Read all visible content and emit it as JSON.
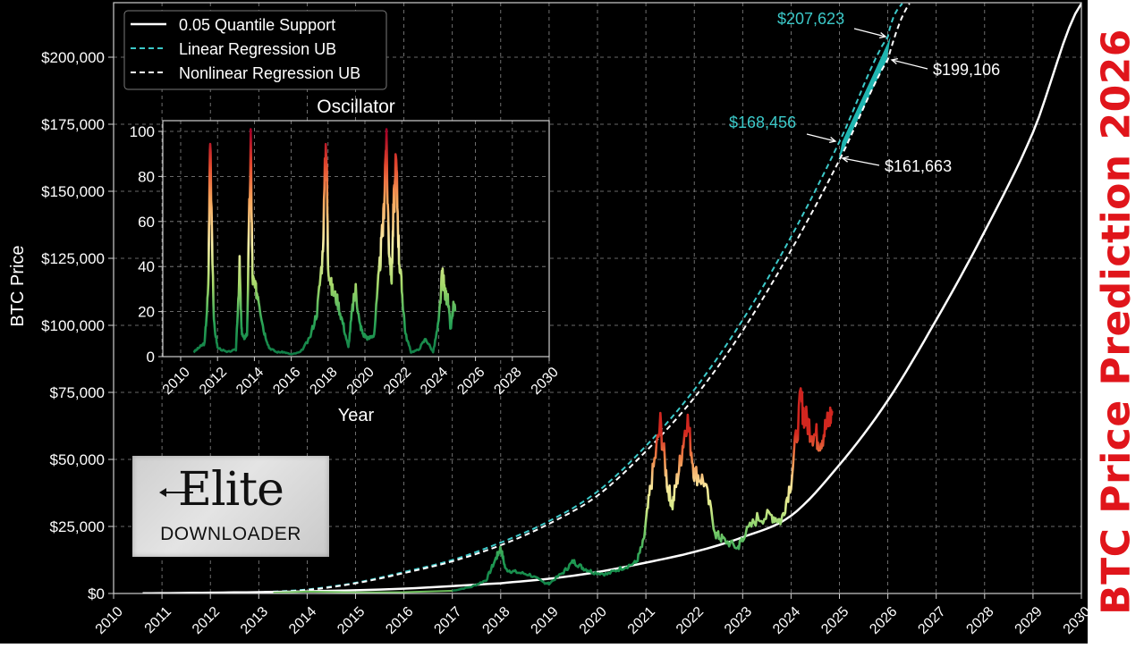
{
  "side_title": "BTC Price Prediction 2026",
  "logo": {
    "brand": "Elite",
    "sub": "DOWNLOADER"
  },
  "colors": {
    "background": "#000000",
    "support": "#ffffff",
    "linear_ub": "#3cc9c9",
    "nonlinear_ub": "#ffffff",
    "projection_band": "#1fb5b0",
    "title_red": "#e0151b",
    "grid": "#8a8a8a"
  },
  "chart_data": [
    {
      "type": "line",
      "title": "",
      "xlabel": "",
      "ylabel": "BTC Price",
      "xlim": [
        2010,
        2030
      ],
      "ylim": [
        0,
        220000
      ],
      "grid": true,
      "legend_position": "upper left",
      "x_ticks": [
        "2010",
        "2011",
        "2012",
        "2013",
        "2014",
        "2015",
        "2016",
        "2017",
        "2018",
        "2019",
        "2020",
        "2021",
        "2022",
        "2023",
        "2024",
        "2025",
        "2026",
        "2027",
        "2028",
        "2029",
        "2030"
      ],
      "y_ticks": [
        "$0",
        "$25,000",
        "$50,000",
        "$75,000",
        "$100,000",
        "$125,000",
        "$150,000",
        "$175,000",
        "$200,000"
      ],
      "legend": [
        "0.05 Quantile Support",
        "Linear Regression UB",
        "Nonlinear Regression UB"
      ],
      "series": [
        {
          "name": "0.05 Quantile Support",
          "style": "solid",
          "color": "#ffffff",
          "x": [
            2010.6,
            2012,
            2014,
            2016,
            2018,
            2019,
            2020,
            2021,
            2022,
            2023,
            2024,
            2025,
            2026,
            2027,
            2028,
            2029,
            2030
          ],
          "values": [
            100,
            300,
            800,
            1800,
            3800,
            5500,
            8000,
            11500,
            15500,
            21000,
            29000,
            48000,
            72000,
            102000,
            135000,
            172000,
            220000
          ]
        },
        {
          "name": "Linear Regression UB",
          "style": "dashed",
          "color": "#3cc9c9",
          "x": [
            2012,
            2013,
            2014,
            2015,
            2016,
            2017,
            2018,
            2019,
            2020,
            2021,
            2022,
            2023,
            2024,
            2025,
            2026,
            2026.3
          ],
          "values": [
            0,
            500,
            1500,
            4000,
            8000,
            12500,
            19000,
            27000,
            38000,
            55000,
            76000,
            102000,
            133000,
            168456,
            207623,
            220000
          ]
        },
        {
          "name": "Nonlinear Regression UB",
          "style": "dashed",
          "color": "#ffffff",
          "x": [
            2012,
            2013,
            2014,
            2015,
            2016,
            2017,
            2018,
            2019,
            2020,
            2021,
            2022,
            2023,
            2024,
            2025,
            2026,
            2026.45
          ],
          "values": [
            0,
            400,
            1300,
            3800,
            7600,
            12000,
            18000,
            26000,
            36500,
            53000,
            73000,
            98000,
            128000,
            161663,
            199106,
            220000
          ]
        },
        {
          "name": "BTC Price",
          "style": "solid-gradient",
          "x": [
            2017.0,
            2017.4,
            2017.7,
            2017.9,
            2018.0,
            2018.1,
            2018.3,
            2018.6,
            2018.9,
            2019.0,
            2019.3,
            2019.5,
            2019.7,
            2019.9,
            2020.2,
            2020.5,
            2020.8,
            2020.95,
            2021.1,
            2021.3,
            2021.45,
            2021.55,
            2021.7,
            2021.85,
            2022.0,
            2022.2,
            2022.45,
            2022.6,
            2022.9,
            2023.0,
            2023.3,
            2023.6,
            2023.8,
            2024.0,
            2024.2,
            2024.3,
            2024.45,
            2024.6,
            2024.75,
            2024.85
          ],
          "values": [
            1000,
            2500,
            5000,
            13000,
            17000,
            9000,
            8000,
            7000,
            4000,
            3700,
            8000,
            12000,
            9500,
            8000,
            7200,
            9500,
            11500,
            19000,
            40000,
            63000,
            40000,
            33000,
            48000,
            66000,
            45000,
            42000,
            22000,
            20000,
            17000,
            21000,
            28000,
            29000,
            27000,
            42000,
            72000,
            65000,
            60000,
            57000,
            63000,
            68000
          ]
        }
      ],
      "annotations": [
        {
          "text": "$207,623",
          "color": "#3cc9c9",
          "x": 2026.0,
          "y": 207623
        },
        {
          "text": "$199,106",
          "color": "#ffffff",
          "x": 2026.0,
          "y": 199106
        },
        {
          "text": "$168,456",
          "color": "#3cc9c9",
          "x": 2025.0,
          "y": 168456
        },
        {
          "text": "$161,663",
          "color": "#ffffff",
          "x": 2025.0,
          "y": 161663
        }
      ]
    },
    {
      "type": "line",
      "title": "Oscillator",
      "xlabel": "Year",
      "ylabel": "",
      "xlim": [
        2009.1,
        2030
      ],
      "ylim": [
        0,
        105
      ],
      "grid": true,
      "x_ticks": [
        "2010",
        "2012",
        "2014",
        "2016",
        "2018",
        "2020",
        "2022",
        "2024",
        "2026",
        "2028",
        "2030"
      ],
      "y_ticks": [
        "0",
        "20",
        "40",
        "60",
        "80",
        "100"
      ],
      "series": [
        {
          "name": "Oscillator",
          "x": [
            2010.7,
            2011.0,
            2011.3,
            2011.5,
            2011.6,
            2011.8,
            2012.0,
            2012.5,
            2013.0,
            2013.2,
            2013.3,
            2013.4,
            2013.6,
            2013.8,
            2013.9,
            2014.05,
            2014.2,
            2014.5,
            2014.8,
            2015.2,
            2015.6,
            2016.0,
            2016.5,
            2017.0,
            2017.4,
            2017.7,
            2017.9,
            2018.0,
            2018.2,
            2018.5,
            2018.8,
            2019.1,
            2019.3,
            2019.5,
            2019.7,
            2019.9,
            2020.2,
            2020.5,
            2020.8,
            2021.0,
            2021.15,
            2021.3,
            2021.45,
            2021.55,
            2021.7,
            2021.85,
            2022.0,
            2022.2,
            2022.5,
            2022.9,
            2023.3,
            2023.7,
            2024.0,
            2024.2,
            2024.35,
            2024.5,
            2024.65,
            2024.8,
            2024.9
          ],
          "values": [
            2,
            4,
            6,
            30,
            100,
            15,
            4,
            2,
            3,
            40,
            12,
            8,
            10,
            95,
            35,
            30,
            28,
            12,
            4,
            2,
            2,
            1,
            2,
            8,
            20,
            45,
            100,
            42,
            30,
            25,
            15,
            4,
            20,
            30,
            15,
            10,
            8,
            10,
            40,
            60,
            98,
            50,
            35,
            65,
            85,
            45,
            30,
            10,
            2,
            3,
            8,
            2,
            15,
            37,
            28,
            25,
            12,
            22,
            20
          ]
        }
      ]
    }
  ]
}
